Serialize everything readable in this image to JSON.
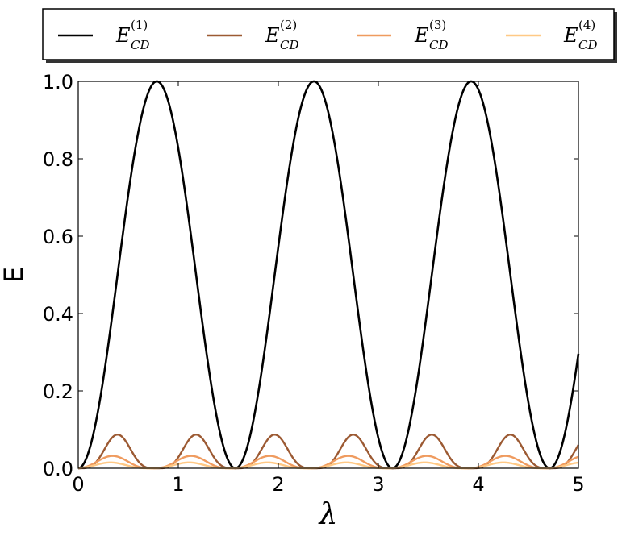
{
  "chart_data": {
    "type": "line",
    "xlabel": "λ",
    "ylabel": "E",
    "xlim": [
      0,
      5
    ],
    "ylim": [
      0,
      1.0
    ],
    "x_ticks": [
      "0",
      "1",
      "2",
      "3",
      "4",
      "5"
    ],
    "y_ticks": [
      "0.0",
      "0.2",
      "0.4",
      "0.6",
      "0.8",
      "1.0"
    ],
    "grid": false,
    "legend_position": "top",
    "series": [
      {
        "name": "E_CD^(1)",
        "symbol": "E",
        "subscript": "CD",
        "superscript": "(1)",
        "color": "#000000",
        "period": 1.5708,
        "peak": 1.0,
        "shape_power": 2
      },
      {
        "name": "E_CD^(2)",
        "symbol": "E",
        "subscript": "CD",
        "superscript": "(2)",
        "color": "#9c5a33",
        "period": 0.7854,
        "peak": 0.087,
        "shape_power": 4
      },
      {
        "name": "E_CD^(3)",
        "symbol": "E",
        "subscript": "CD",
        "superscript": "(3)",
        "color": "#ef9b5f",
        "period": 0.7854,
        "peak": 0.032,
        "shape_power": 3,
        "phase": -0.05
      },
      {
        "name": "E_CD^(4)",
        "symbol": "E",
        "subscript": "CD",
        "superscript": "(4)",
        "color": "#ffc986",
        "period": 0.7854,
        "peak": 0.015,
        "shape_power": 3,
        "phase": -0.07
      }
    ]
  }
}
